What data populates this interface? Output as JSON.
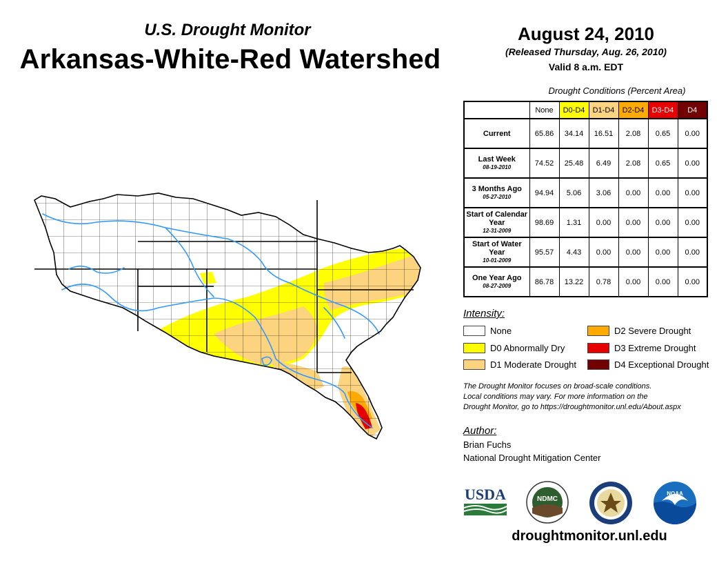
{
  "header": {
    "subtitle": "U.S. Drought Monitor",
    "title": "Arkansas-White-Red Watershed",
    "date": "August 24, 2010",
    "released": "(Released Thursday, Aug. 26, 2010)",
    "valid": "Valid 8 a.m. EDT"
  },
  "table": {
    "caption": "Drought Conditions (Percent Area)",
    "columns": [
      "None",
      "D0-D4",
      "D1-D4",
      "D2-D4",
      "D3-D4",
      "D4"
    ],
    "rows": [
      {
        "label": "Current",
        "date": "",
        "values": [
          "65.86",
          "34.14",
          "16.51",
          "2.08",
          "0.65",
          "0.00"
        ]
      },
      {
        "label": "Last Week",
        "date": "08-19-2010",
        "values": [
          "74.52",
          "25.48",
          "6.49",
          "2.08",
          "0.65",
          "0.00"
        ]
      },
      {
        "label": "3 Months Ago",
        "date": "05-27-2010",
        "values": [
          "94.94",
          "5.06",
          "3.06",
          "0.00",
          "0.00",
          "0.00"
        ]
      },
      {
        "label": "Start of Calendar Year",
        "date": "12-31-2009",
        "values": [
          "98.69",
          "1.31",
          "0.00",
          "0.00",
          "0.00",
          "0.00"
        ]
      },
      {
        "label": "Start of Water Year",
        "date": "10-01-2009",
        "values": [
          "95.57",
          "4.43",
          "0.00",
          "0.00",
          "0.00",
          "0.00"
        ]
      },
      {
        "label": "One Year Ago",
        "date": "08-27-2009",
        "values": [
          "86.78",
          "13.22",
          "0.78",
          "0.00",
          "0.00",
          "0.00"
        ]
      }
    ]
  },
  "legend": {
    "heading": "Intensity:",
    "items": [
      {
        "label": "None",
        "color": "#ffffff"
      },
      {
        "label": "D0 Abnormally Dry",
        "color": "#ffff00"
      },
      {
        "label": "D1 Moderate Drought",
        "color": "#fcd37f"
      },
      {
        "label": "D2 Severe Drought",
        "color": "#ffaa00"
      },
      {
        "label": "D3 Extreme Drought",
        "color": "#e60000"
      },
      {
        "label": "D4 Exceptional Drought",
        "color": "#730000"
      }
    ]
  },
  "note": {
    "line1": "The Drought Monitor focuses on broad-scale conditions.",
    "line2": "Local conditions may vary. For more information on the",
    "line3": "Drought Monitor, go to https://droughtmonitor.unl.edu/About.aspx"
  },
  "author": {
    "heading": "Author:",
    "name": "Brian Fuchs",
    "organization": "National Drought Mitigation Center"
  },
  "logos": {
    "usda": "USDA",
    "ndmc": "NDMC",
    "noaa": "NOAA"
  },
  "footer": {
    "website": "droughtmonitor.unl.edu"
  },
  "colors": {
    "river": "#3399ff",
    "county_line": "#000000"
  }
}
